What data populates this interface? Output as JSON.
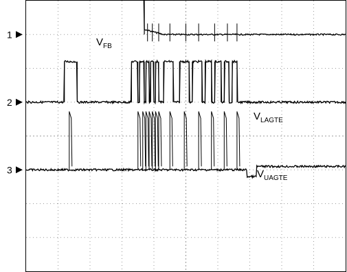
{
  "chart_data": {
    "type": "line",
    "title": "",
    "xlabel": "",
    "ylabel": "",
    "grid": true,
    "grid_divisions": {
      "x": 10,
      "y": 8
    },
    "channel_markers": [
      {
        "label": "1",
        "level": 3.0
      },
      {
        "label": "2",
        "level": 1.0
      },
      {
        "label": "3",
        "level": -1.0
      }
    ],
    "series": [
      {
        "name": "VFB",
        "label_main": "V",
        "label_sub": "FB",
        "baseline": 3.0,
        "segments": [
          {
            "x0": 0.0,
            "x1": 3.7,
            "level": 4.2
          },
          {
            "x0": 3.7,
            "x1": 6.8,
            "level": 3.0
          },
          {
            "x0": 6.8,
            "x1": 10.0,
            "level": 3.0
          }
        ],
        "spikes_x": [
          3.8,
          3.95,
          4.15,
          4.5,
          5.0,
          5.4,
          5.9,
          6.3,
          6.6
        ]
      },
      {
        "name": "VLAGTE",
        "label_main": "V",
        "label_sub": "LAGTE",
        "baseline": 1.0,
        "pulses": [
          [
            1.2,
            1.6
          ],
          [
            3.3,
            3.5
          ],
          [
            3.55,
            3.7
          ],
          [
            3.75,
            3.85
          ],
          [
            3.9,
            4.0
          ],
          [
            4.05,
            4.15
          ],
          [
            4.3,
            4.6
          ],
          [
            4.8,
            5.1
          ],
          [
            5.2,
            5.5
          ],
          [
            5.6,
            5.8
          ],
          [
            5.9,
            6.1
          ],
          [
            6.2,
            6.35
          ],
          [
            6.45,
            6.6
          ]
        ],
        "high_level": 2.2
      },
      {
        "name": "VUAGTE",
        "label_main": "V",
        "label_sub": "UAGTE",
        "baseline": -1.0,
        "spikes_x": [
          1.35,
          3.5,
          3.65,
          3.75,
          3.85,
          3.95,
          4.05,
          4.15,
          4.5,
          4.95,
          5.4,
          5.8,
          6.2,
          6.6
        ],
        "step": {
          "x0": 6.9,
          "x1": 7.2,
          "level": -1.2,
          "after": -0.9
        }
      }
    ]
  }
}
